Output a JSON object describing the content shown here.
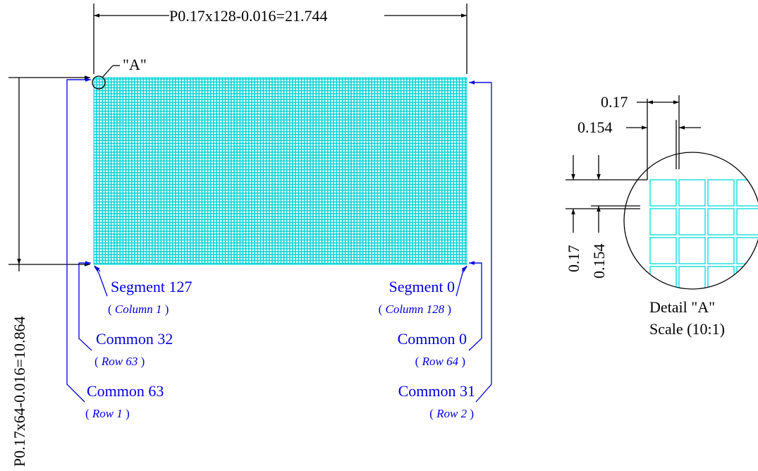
{
  "dimensions": {
    "width": "P0.17x128-0.016=21.744",
    "height": "P0.17x64-0.016=10.864"
  },
  "detail_marker": "\"A\"",
  "labels": {
    "segment_127": "Segment 127",
    "segment_127_open": "(",
    "segment_127_sub": "Column 1",
    "segment_127_close": ")",
    "segment_0": "Segment 0",
    "segment_0_open": "(",
    "segment_0_sub": "Column 128",
    "segment_0_close": ")",
    "common_32": "Common 32",
    "common_32_open": "(",
    "common_32_sub": "Row 63",
    "common_32_close": ")",
    "common_0": "Common 0",
    "common_0_open": "(",
    "common_0_sub": "Row 64",
    "common_0_close": ")",
    "common_63": "Common 63",
    "common_63_open": "(",
    "common_63_sub": "Row 1",
    "common_63_close": ")",
    "common_31": "Common 31",
    "common_31_open": "(",
    "common_31_sub": "Row 2",
    "common_31_close": ")"
  },
  "detail": {
    "pitch_h": "0.17",
    "dot_h": "0.154",
    "pitch_v": "0.17",
    "dot_v": "0.154",
    "title": "Detail \"A\"",
    "scale": "Scale (10:1)"
  },
  "colors": {
    "pixel_grid": "#00d8d8",
    "callouts": "#0000dd",
    "dimension_lines": "#000000"
  }
}
